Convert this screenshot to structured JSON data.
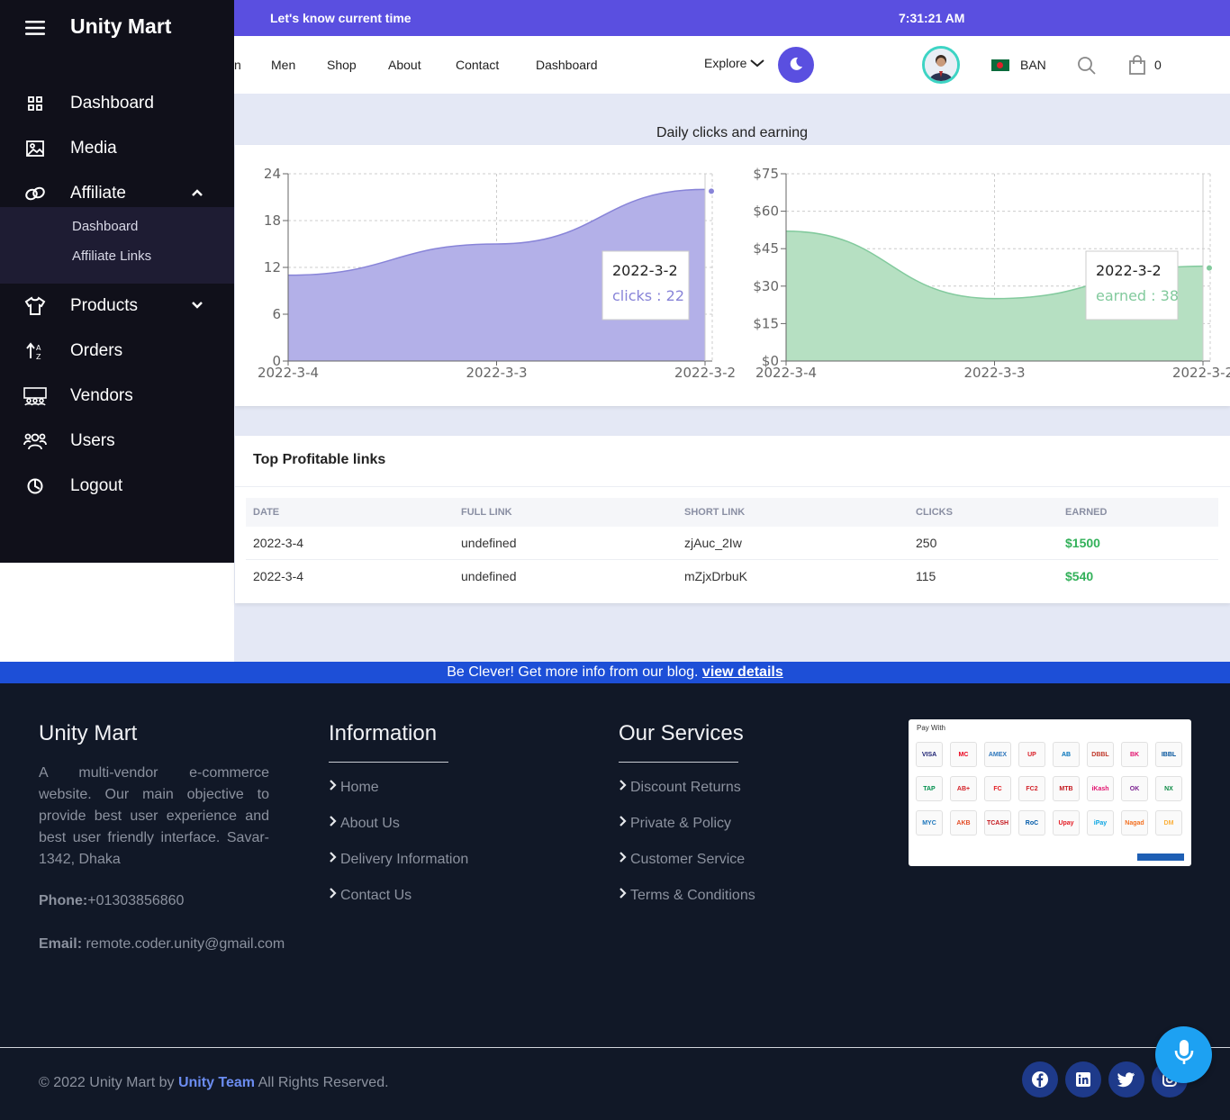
{
  "topbar": {
    "left_text": "Let's know current time",
    "time": "7:31:21 AM"
  },
  "nav": {
    "items": [
      "n",
      "Men",
      "Shop",
      "About",
      "Contact",
      "Dashboard"
    ],
    "explore": "Explore",
    "country": "BAN",
    "cart_count": "0"
  },
  "sidebar": {
    "brand": "Unity Mart",
    "items": [
      {
        "label": "Dashboard",
        "icon": "grid-icon"
      },
      {
        "label": "Media",
        "icon": "image-icon"
      },
      {
        "label": "Affiliate",
        "icon": "link-icon"
      },
      {
        "label": "Products",
        "icon": "shirt-icon"
      },
      {
        "label": "Orders",
        "icon": "sort-icon"
      },
      {
        "label": "Vendors",
        "icon": "store-icon"
      },
      {
        "label": "Users",
        "icon": "users-icon"
      },
      {
        "label": "Logout",
        "icon": "logout-icon"
      }
    ],
    "affiliate_sub": [
      "Dashboard",
      "Affiliate Links"
    ]
  },
  "chart_title": "Daily clicks and earning",
  "chart_data": [
    {
      "type": "area",
      "categories": [
        "2022-3-4",
        "2022-3-3",
        "2022-3-2"
      ],
      "series": [
        {
          "values": [
            11,
            15,
            22
          ],
          "color": "#8884d8"
        }
      ],
      "ylim": [
        0,
        24
      ],
      "yticks": [
        "0",
        "6",
        "12",
        "18",
        "24"
      ],
      "grid": true,
      "tooltip": {
        "label": "2022-3-2",
        "text": "clicks : 22"
      }
    },
    {
      "type": "area",
      "categories": [
        "2022-3-4",
        "2022-3-3",
        "2022-3-2"
      ],
      "series": [
        {
          "values": [
            52,
            25,
            38
          ],
          "color": "#82ca9d"
        }
      ],
      "ylim": [
        0,
        75
      ],
      "yticks": [
        "$0",
        "$15",
        "$30",
        "$45",
        "$60",
        "$75"
      ],
      "grid": true,
      "tooltip": {
        "label": "2022-3-2",
        "text": "earned : 38"
      }
    }
  ],
  "table": {
    "title": "Top Profitable links",
    "headers": [
      "DATE",
      "FULL LINK",
      "SHORT LINK",
      "CLICKS",
      "EARNED"
    ],
    "rows": [
      [
        "2022-3-4",
        "undefined",
        "zjAuc_2Iw",
        "250",
        "$1500"
      ],
      [
        "2022-3-4",
        "undefined",
        "mZjxDrbuK",
        "115",
        "$540"
      ]
    ]
  },
  "blog": {
    "text": "Be Clever! Get more info from our blog.",
    "link": "view details"
  },
  "footer": {
    "brand": "Unity Mart",
    "about": "A multi-vendor e-commerce website. Our main objective to provide best user experience and best user friendly interface. Savar-1342, Dhaka",
    "phone_label": "Phone:",
    "phone": "+01303856860",
    "email_label": "Email:",
    "email": "remote.coder.unity@gmail.com",
    "info_title": "Information",
    "info_links": [
      "Home",
      "About Us",
      "Delivery Information",
      "Contact Us"
    ],
    "services_title": "Our Services",
    "service_links": [
      "Discount Returns",
      "Private & Policy",
      "Customer Service",
      "Terms & Conditions"
    ],
    "pay_with": "Pay With",
    "pay_logos": [
      "VISA",
      "MC",
      "AMEX",
      "UP",
      "AB",
      "DBBL",
      "BK",
      "IBBL",
      "TAP",
      "AB+",
      "FC",
      "FC2",
      "MTB",
      "iKash",
      "OK",
      "NX",
      "MYC",
      "AKB",
      "TCASH",
      "RoC",
      "Upay",
      "iPay",
      "Nagad",
      "DM"
    ],
    "copyright_pre": "© 2022 Unity Mart by",
    "copyright_team": "Unity Team",
    "copyright_post": "All Rights Reserved."
  }
}
